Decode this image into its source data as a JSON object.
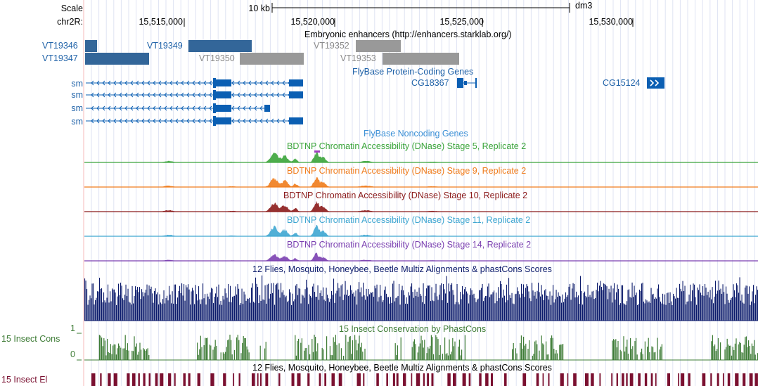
{
  "ruler": {
    "scale_label": "Scale",
    "scale_bar_label": "10 kb",
    "assembly": "dm3",
    "chrom_label": "chr2R:",
    "positions": [
      "15,515,000",
      "15,520,000",
      "15,525,000",
      "15,530,000"
    ]
  },
  "enhancers": {
    "track_title": "Embryonic enhancers (http://enhancers.starklab.org/)",
    "items": [
      {
        "name": "VT19346",
        "color": "#336699"
      },
      {
        "name": "VT19347",
        "color": "#336699"
      },
      {
        "name": "VT19349",
        "color": "#336699"
      },
      {
        "name": "VT19350",
        "color": "#999999"
      },
      {
        "name": "VT19352",
        "color": "#999999"
      },
      {
        "name": "VT19353",
        "color": "#999999"
      }
    ]
  },
  "coding_genes": {
    "track_title": "FlyBase Protein-Coding Genes",
    "transcripts": [
      "sm",
      "sm",
      "sm",
      "sm"
    ],
    "gene_cg18367": "CG18367",
    "gene_cg15124": "CG15124",
    "color": "#0b5fb3"
  },
  "noncoding_genes": {
    "track_title": "FlyBase Noncoding Genes"
  },
  "dnase_tracks": [
    {
      "title": "BDTNP Chromatin Accessibility (DNase) Stage 5, Replicate 2",
      "color": "#3aa43a"
    },
    {
      "title": "BDTNP Chromatin Accessibility (DNase) Stage 9, Replicate 2",
      "color": "#f07c1c"
    },
    {
      "title": "BDTNP Chromatin Accessibility (DNase) Stage 10, Replicate 2",
      "color": "#8b1a1a"
    },
    {
      "title": "BDTNP Chromatin Accessibility (DNase) Stage 11, Replicate 2",
      "color": "#3ea6d1"
    },
    {
      "title": "BDTNP Chromatin Accessibility (DNase) Stage 14, Replicate 2",
      "color": "#7a3fb0"
    }
  ],
  "multiz": {
    "track_title": "12 Flies, Mosquito, Honeybee, Beetle Multiz Alignments & phastCons Scores",
    "color": "#0b1a6b"
  },
  "insect_cons": {
    "track_title": "15 Insect Conservation by PhastCons",
    "side_label": "15 Insect Cons",
    "axis_max": "1",
    "axis_min": "0",
    "color": "#3e7c36"
  },
  "insect_el": {
    "track_title": "12 Flies, Mosquito, Honeybee, Beetle Multiz Alignments & phastCons Scores",
    "side_label": "15 Insect El",
    "color": "#7a1030"
  }
}
